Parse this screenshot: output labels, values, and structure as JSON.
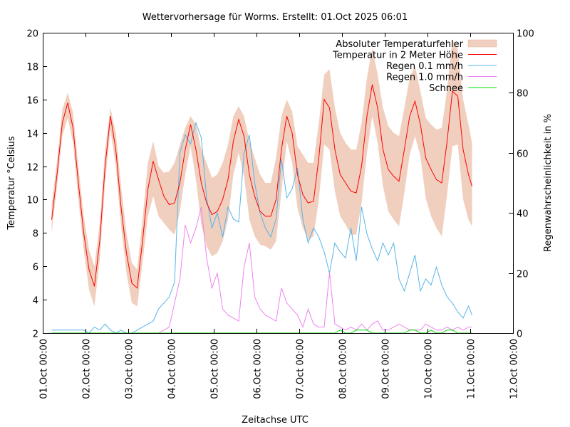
{
  "chart_data": {
    "type": "line",
    "title": "Wettervorhersage für Worms. Erstellt: 01.Oct 2025 06:01",
    "xlabel": "Zeitachse UTC",
    "ylabel": "Temperatur °Celsius",
    "y2label": "Regenwahrscheinlichkeit in %",
    "x_unit": "hours since 01.Oct 00:00 UTC",
    "xlim": [
      0,
      264
    ],
    "ylim": [
      2,
      20
    ],
    "y2lim": [
      0,
      100
    ],
    "grid": false,
    "legend_position": "top-right",
    "x_ticks": [
      {
        "x": 0,
        "label": "01.Oct 00:00"
      },
      {
        "x": 24,
        "label": "02.Oct 00:00"
      },
      {
        "x": 48,
        "label": "03.Oct 00:00"
      },
      {
        "x": 72,
        "label": "04.Oct 00:00"
      },
      {
        "x": 96,
        "label": "05.Oct 00:00"
      },
      {
        "x": 120,
        "label": "06.Oct 00:00"
      },
      {
        "x": 144,
        "label": "07.Oct 00:00"
      },
      {
        "x": 168,
        "label": "08.Oct 00:00"
      },
      {
        "x": 192,
        "label": "09.Oct 00:00"
      },
      {
        "x": 216,
        "label": "10.Oct 00:00"
      },
      {
        "x": 240,
        "label": "11.Oct 00:00"
      },
      {
        "x": 264,
        "label": "12.Oct 00:00"
      }
    ],
    "y_ticks": [
      "2",
      "4",
      "6",
      "8",
      "10",
      "12",
      "14",
      "16",
      "18",
      "20"
    ],
    "y2_ticks": [
      "0",
      "20",
      "40",
      "60",
      "80",
      "100"
    ],
    "colors": {
      "band": "#f0cfbf",
      "temperature": "#ff0000",
      "rain_01": "#56b4e9",
      "rain_10": "#ee82ee",
      "snow": "#00dd00"
    },
    "legend": [
      {
        "key": "band",
        "label": "Absoluter Temperaturfehler",
        "kind": "box"
      },
      {
        "key": "temperature",
        "label": "Temperatur in 2 Meter Höhe",
        "kind": "line"
      },
      {
        "key": "rain_01",
        "label": "Regen 0.1 mm/h",
        "kind": "line"
      },
      {
        "key": "rain_10",
        "label": "Regen 1.0 mm/h",
        "kind": "line"
      },
      {
        "key": "snow",
        "label": "Schnee",
        "kind": "line"
      }
    ],
    "x": [
      5,
      8,
      11,
      14,
      17,
      20,
      23,
      26,
      29,
      32,
      35,
      38,
      41,
      44,
      47,
      50,
      53,
      56,
      59,
      62,
      65,
      68,
      71,
      74,
      77,
      80,
      83,
      86,
      89,
      92,
      95,
      98,
      101,
      104,
      107,
      110,
      113,
      116,
      119,
      122,
      125,
      128,
      131,
      134,
      137,
      140,
      143,
      146,
      149,
      152,
      155,
      158,
      161,
      164,
      167,
      170,
      173,
      176,
      179,
      182,
      185,
      188,
      191,
      194,
      197,
      200,
      203,
      206,
      209,
      212,
      215,
      218,
      221,
      224,
      227,
      230,
      233,
      236,
      239,
      241
    ],
    "series": [
      {
        "name": "Temperatur in 2 Meter Höhe",
        "axis": "y",
        "values": [
          8.8,
          11.5,
          14.6,
          15.8,
          14.3,
          11.0,
          8.0,
          5.8,
          4.8,
          7.5,
          12.0,
          15.0,
          13.0,
          9.5,
          6.8,
          5.0,
          4.7,
          7.5,
          10.6,
          12.3,
          11.2,
          10.2,
          9.7,
          9.8,
          11.0,
          13.0,
          14.5,
          13.0,
          11.0,
          9.8,
          9.1,
          9.3,
          10.0,
          11.2,
          13.5,
          14.8,
          13.8,
          11.5,
          10.2,
          9.3,
          9.0,
          9.0,
          10.0,
          13.0,
          15.0,
          14.0,
          11.5,
          10.3,
          9.8,
          9.9,
          12.5,
          16.0,
          15.5,
          13.0,
          11.5,
          11.0,
          10.5,
          10.4,
          12.0,
          15.0,
          16.9,
          15.5,
          13.0,
          11.8,
          11.4,
          11.1,
          13.0,
          15.0,
          15.9,
          14.5,
          12.5,
          11.8,
          11.2,
          11.0,
          13.5,
          16.5,
          16.2,
          13.0,
          11.5,
          10.8
        ]
      },
      {
        "name": "Absoluter Temperaturfehler (lower)",
        "axis": "y",
        "values": [
          8.0,
          10.8,
          13.8,
          14.9,
          13.4,
          10.0,
          7.0,
          4.6,
          3.6,
          6.4,
          11.0,
          14.2,
          12.0,
          8.4,
          5.6,
          3.8,
          3.6,
          6.2,
          9.0,
          10.2,
          9.0,
          8.6,
          8.2,
          7.9,
          9.3,
          11.5,
          13.2,
          11.2,
          8.5,
          7.2,
          6.6,
          6.8,
          7.5,
          8.8,
          11.5,
          12.8,
          11.4,
          8.8,
          7.8,
          7.3,
          7.2,
          7.0,
          7.5,
          10.5,
          13.5,
          12.2,
          9.5,
          8.3,
          7.6,
          7.8,
          10.0,
          13.3,
          13.0,
          10.5,
          9.0,
          8.5,
          7.9,
          7.9,
          9.8,
          12.8,
          15.0,
          13.4,
          10.8,
          9.3,
          8.8,
          8.4,
          10.4,
          12.7,
          13.8,
          12.6,
          10.1,
          9.0,
          8.3,
          7.8,
          10.3,
          13.2,
          13.3,
          10.0,
          8.8,
          8.4
        ]
      },
      {
        "name": "Absoluter Temperaturfehler (upper)",
        "axis": "y",
        "values": [
          9.7,
          12.3,
          15.4,
          16.4,
          15.2,
          12.0,
          9.0,
          7.0,
          6.0,
          8.6,
          13.0,
          15.5,
          14.0,
          10.8,
          8.0,
          6.2,
          5.8,
          8.8,
          12.2,
          13.5,
          12.0,
          11.6,
          11.7,
          12.2,
          13.3,
          14.3,
          15.0,
          14.5,
          13.0,
          12.2,
          11.3,
          11.5,
          12.2,
          13.3,
          15.0,
          15.6,
          15.0,
          13.5,
          12.5,
          11.5,
          11.0,
          11.0,
          12.5,
          15.0,
          16.0,
          15.3,
          13.2,
          12.7,
          12.2,
          12.2,
          14.6,
          17.5,
          17.8,
          15.5,
          14.0,
          13.4,
          13.0,
          13.0,
          14.6,
          17.3,
          19.1,
          17.5,
          15.5,
          14.4,
          14.0,
          13.8,
          15.5,
          17.3,
          18.0,
          16.5,
          14.9,
          14.5,
          14.2,
          14.3,
          16.6,
          19.6,
          19.0,
          16.0,
          14.5,
          13.4
        ]
      },
      {
        "name": "Regen 0.1 mm/h",
        "axis": "y2",
        "values": [
          1,
          1,
          1,
          1,
          1,
          1,
          1,
          0,
          2,
          1,
          3,
          1,
          0,
          1,
          0,
          0,
          1,
          2,
          3,
          4,
          8,
          10,
          12,
          17,
          60,
          66,
          63,
          70,
          65,
          45,
          35,
          40,
          32,
          42,
          38,
          37,
          60,
          66,
          50,
          40,
          35,
          32,
          38,
          58,
          45,
          48,
          55,
          38,
          30,
          35,
          32,
          27,
          20,
          30,
          27,
          25,
          35,
          24,
          42,
          33,
          28,
          24,
          30,
          26,
          30,
          18,
          14,
          20,
          26,
          14,
          18,
          16,
          22,
          16,
          12,
          10,
          7,
          5,
          9,
          6
        ],
        "y2_values": [
          1,
          1,
          1,
          1,
          1,
          1,
          1,
          0,
          2,
          1,
          3,
          1,
          0,
          1,
          0,
          0,
          1,
          2,
          3,
          4,
          8,
          10,
          12,
          17,
          60,
          66,
          63,
          70,
          65,
          45,
          35,
          40,
          32,
          42,
          38,
          37,
          60,
          66,
          50,
          40,
          35,
          32,
          38,
          58,
          45,
          48,
          55,
          38,
          30,
          35,
          32,
          27,
          20,
          30,
          27,
          25,
          35,
          24,
          42,
          33,
          28,
          24,
          30,
          26,
          30,
          18,
          14,
          20,
          26,
          14,
          18,
          16,
          22,
          16,
          12,
          10,
          7,
          5,
          9,
          6
        ]
      },
      {
        "name": "Regen 1.0 mm/h",
        "axis": "y2",
        "values": [
          0,
          0,
          0,
          0,
          0,
          0,
          0,
          0,
          0,
          0,
          0,
          0,
          0,
          0,
          0,
          0,
          0,
          0,
          0,
          0,
          0,
          1,
          2,
          10,
          18,
          36,
          30,
          35,
          42,
          25,
          15,
          20,
          8,
          6,
          5,
          4,
          22,
          30,
          12,
          8,
          6,
          5,
          4,
          15,
          10,
          8,
          6,
          2,
          8,
          3,
          2,
          2,
          20,
          3,
          2,
          1,
          2,
          1,
          3,
          1,
          3,
          4,
          1,
          1,
          2,
          3,
          2,
          1,
          1,
          1,
          3,
          2,
          1,
          1,
          2,
          1,
          2,
          1,
          2,
          2
        ]
      },
      {
        "name": "Schnee",
        "axis": "y2",
        "values": [
          0,
          0,
          0,
          0,
          0,
          0,
          0,
          0,
          0,
          0,
          0,
          0,
          0,
          0,
          0,
          0,
          0,
          0,
          0,
          0,
          0,
          0,
          0,
          0,
          0,
          0,
          0,
          0,
          0,
          0,
          0,
          0,
          0,
          0,
          0,
          0,
          0,
          0,
          0,
          0,
          0,
          0,
          0,
          0,
          0,
          0,
          0,
          0,
          0,
          0,
          0,
          0,
          0,
          0,
          1,
          0,
          0,
          1,
          1,
          1,
          0,
          0,
          0,
          0,
          0,
          0,
          0,
          1,
          1,
          0,
          0,
          1,
          0,
          0,
          1,
          1,
          0,
          0,
          0,
          0
        ]
      }
    ]
  }
}
